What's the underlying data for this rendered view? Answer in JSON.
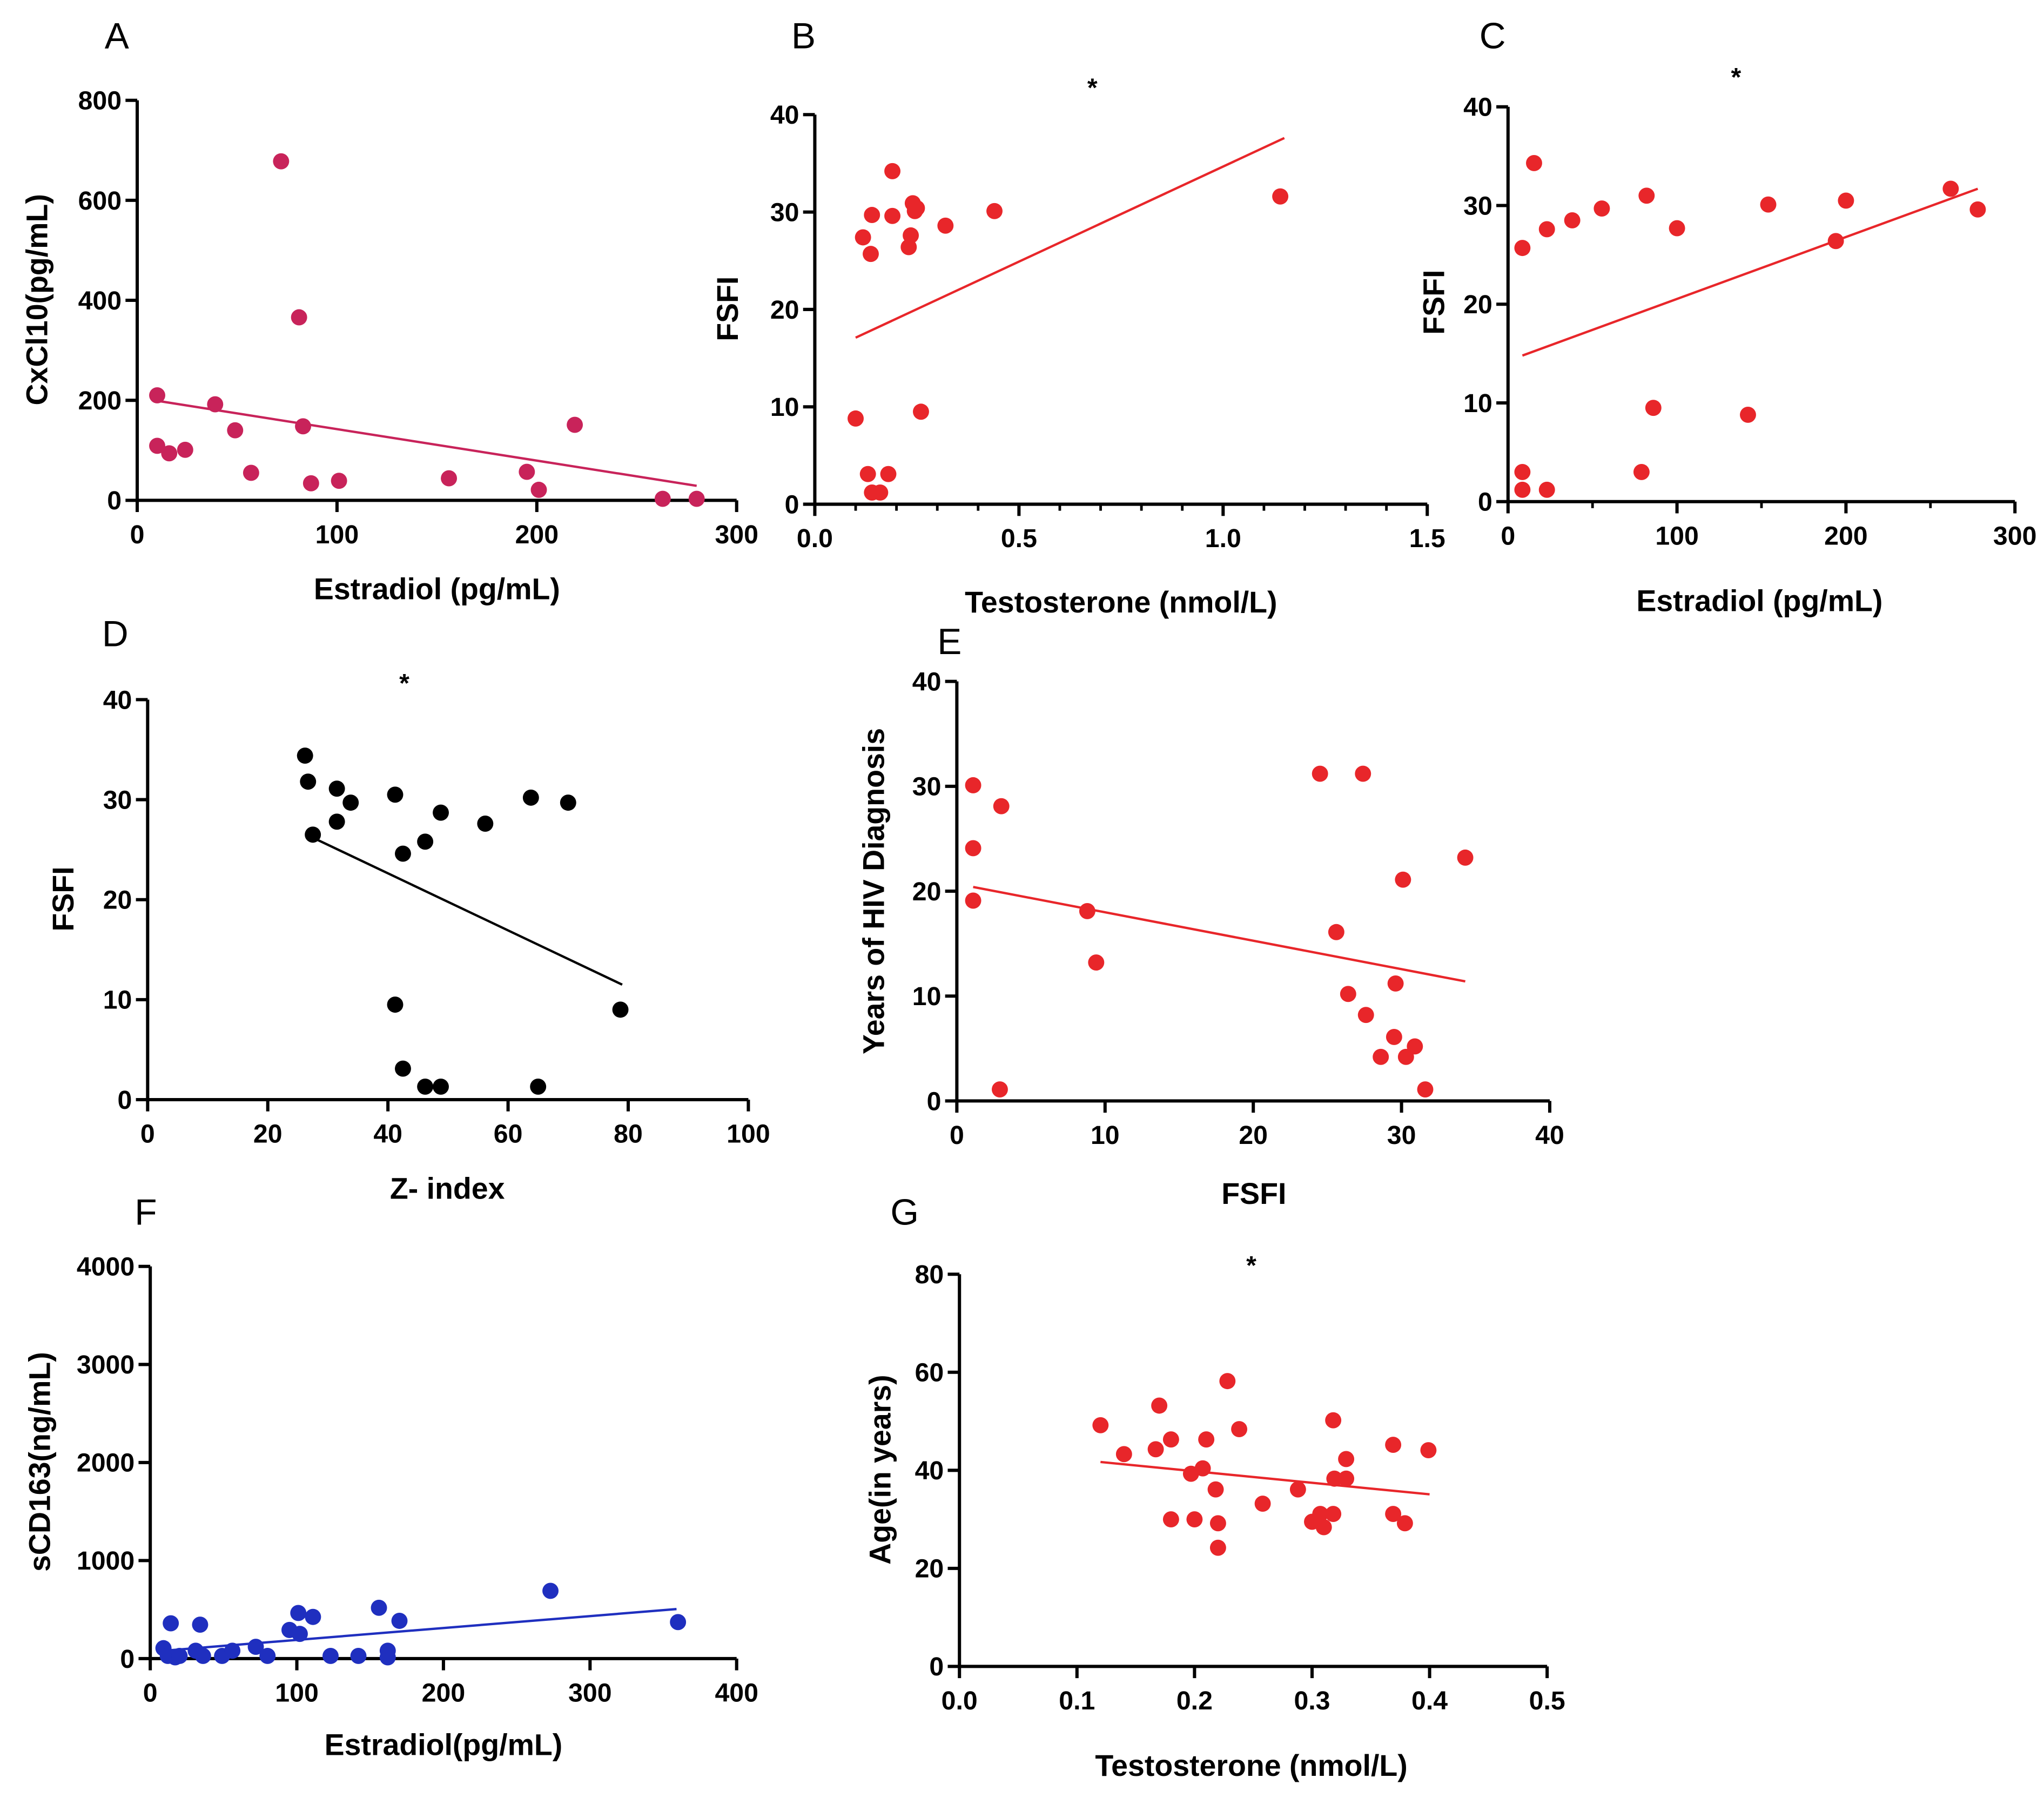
{
  "chart_data": [
    {
      "panel": "A",
      "type": "scatter",
      "color": "#c8235a",
      "xlabel": "Estradiol (pg/mL)",
      "ylabel": "CxCl10(pg/mL)",
      "xlim": [
        0,
        300
      ],
      "ylim": [
        0,
        800
      ],
      "xticks": [
        0,
        100,
        200,
        300
      ],
      "yticks": [
        0,
        200,
        400,
        600,
        800
      ],
      "annotation": "",
      "points": [
        [
          10,
          210
        ],
        [
          10,
          109
        ],
        [
          16,
          94
        ],
        [
          24,
          101
        ],
        [
          39,
          192
        ],
        [
          49,
          140
        ],
        [
          57,
          55
        ],
        [
          72,
          678
        ],
        [
          81,
          366
        ],
        [
          83,
          148
        ],
        [
          87,
          34
        ],
        [
          101,
          39
        ],
        [
          156,
          44
        ],
        [
          195,
          57
        ],
        [
          201,
          21
        ],
        [
          219,
          151
        ],
        [
          263,
          3
        ],
        [
          280,
          3
        ]
      ],
      "fit": [
        [
          8.5,
          200
        ],
        [
          280,
          29
        ]
      ]
    },
    {
      "panel": "B",
      "type": "scatter",
      "color": "#e8262a",
      "xlabel": "Testosterone (nmol/L)",
      "ylabel": "FSFI",
      "xlim": [
        0,
        1.5
      ],
      "ylim": [
        0,
        40
      ],
      "xticks": [
        0.0,
        0.5,
        1.0,
        1.5
      ],
      "xtick_labels": [
        "0.0",
        "0.5",
        "1.0",
        "1.5"
      ],
      "yticks": [
        0,
        10,
        20,
        30,
        40
      ],
      "annotation": "*",
      "points": [
        [
          0.118,
          27.4
        ],
        [
          0.14,
          29.7
        ],
        [
          0.137,
          25.7
        ],
        [
          0.19,
          34.2
        ],
        [
          0.19,
          29.6
        ],
        [
          0.24,
          30.9
        ],
        [
          0.245,
          30.1
        ],
        [
          0.23,
          26.4
        ],
        [
          0.235,
          27.6
        ],
        [
          0.25,
          30.4
        ],
        [
          0.32,
          28.6
        ],
        [
          0.44,
          30.1
        ],
        [
          0.1,
          8.8
        ],
        [
          0.26,
          9.5
        ],
        [
          0.13,
          3.1
        ],
        [
          0.18,
          3.1
        ],
        [
          0.14,
          1.2
        ],
        [
          0.16,
          1.2
        ],
        [
          1.14,
          31.6
        ]
      ],
      "fit": [
        [
          0.1,
          17.1
        ],
        [
          1.15,
          37.6
        ]
      ]
    },
    {
      "panel": "C",
      "type": "scatter",
      "color": "#e8262a",
      "xlabel": "Estradiol (pg/mL)",
      "ylabel": "FSFI",
      "xlim": [
        0,
        300
      ],
      "ylim": [
        0,
        40
      ],
      "xticks": [
        0,
        100,
        200,
        300
      ],
      "yticks": [
        0,
        10,
        20,
        30,
        40
      ],
      "annotation": "*",
      "points": [
        [
          8.5,
          25.7
        ],
        [
          15.4,
          34.3
        ],
        [
          23,
          27.6
        ],
        [
          38,
          28.5
        ],
        [
          55.5,
          29.7
        ],
        [
          82,
          31
        ],
        [
          100,
          27.7
        ],
        [
          154,
          30.1
        ],
        [
          194,
          26.4
        ],
        [
          200,
          30.5
        ],
        [
          262,
          31.7
        ],
        [
          278,
          29.6
        ],
        [
          8.5,
          3
        ],
        [
          8.5,
          1.2
        ],
        [
          23,
          1.2
        ],
        [
          79,
          3
        ],
        [
          86,
          9.5
        ],
        [
          142,
          8.8
        ]
      ],
      "fit": [
        [
          8.5,
          14.8
        ],
        [
          278,
          31.7
        ]
      ]
    },
    {
      "panel": "D",
      "type": "scatter",
      "color": "#000000",
      "xlabel": "Z- index",
      "ylabel": "FSFI",
      "xlim": [
        0,
        100
      ],
      "ylim": [
        0,
        40
      ],
      "xticks": [
        0,
        20,
        40,
        60,
        80,
        100
      ],
      "yticks": [
        0,
        10,
        20,
        30,
        40
      ],
      "annotation": "*",
      "points": [
        [
          26.2,
          34.4
        ],
        [
          26.7,
          31.8
        ],
        [
          31.5,
          31.1
        ],
        [
          33.8,
          29.7
        ],
        [
          31.5,
          27.8
        ],
        [
          27.5,
          26.5
        ],
        [
          41.2,
          30.5
        ],
        [
          48.8,
          28.7
        ],
        [
          42.5,
          24.6
        ],
        [
          46.2,
          25.8
        ],
        [
          56.2,
          27.6
        ],
        [
          63.8,
          30.2
        ],
        [
          70,
          29.7
        ],
        [
          41.2,
          9.5
        ],
        [
          78.7,
          9
        ],
        [
          42.5,
          3.1
        ],
        [
          46.2,
          1.3
        ],
        [
          48.8,
          1.3
        ],
        [
          65,
          1.3
        ]
      ],
      "fit": [
        [
          27.5,
          26.2
        ],
        [
          79,
          11.5
        ]
      ]
    },
    {
      "panel": "E",
      "type": "scatter",
      "color": "#e8262a",
      "xlabel": "FSFI",
      "ylabel": "Years of HIV Diagnosis",
      "xlim": [
        0,
        40
      ],
      "ylim": [
        0,
        40
      ],
      "xticks": [
        0,
        10,
        20,
        30,
        40
      ],
      "yticks": [
        0,
        10,
        20,
        30,
        40
      ],
      "annotation": "",
      "points": [
        [
          1.1,
          30.1
        ],
        [
          1.1,
          24.1
        ],
        [
          1.1,
          19.1
        ],
        [
          3,
          28.1
        ],
        [
          2.9,
          1.1
        ],
        [
          8.8,
          18.1
        ],
        [
          9.4,
          13.2
        ],
        [
          24.5,
          31.2
        ],
        [
          27.4,
          31.2
        ],
        [
          25.6,
          16.1
        ],
        [
          26.4,
          10.2
        ],
        [
          27.6,
          8.2
        ],
        [
          28.6,
          4.2
        ],
        [
          29.6,
          11.2
        ],
        [
          29.5,
          6.1
        ],
        [
          30.1,
          21.1
        ],
        [
          30.3,
          4.2
        ],
        [
          30.9,
          5.2
        ],
        [
          31.6,
          1.1
        ],
        [
          34.3,
          23.2
        ]
      ],
      "fit": [
        [
          1.1,
          20.4
        ],
        [
          34.3,
          11.4
        ]
      ]
    },
    {
      "panel": "F",
      "type": "scatter",
      "color": "#1f2fbf",
      "xlabel": "Estradiol(pg/mL)",
      "ylabel": "sCD163(ng/mL)",
      "xlim": [
        0,
        400
      ],
      "ylim": [
        0,
        4000
      ],
      "xticks": [
        0,
        100,
        200,
        300,
        400
      ],
      "yticks": [
        0,
        1000,
        2000,
        3000,
        4000
      ],
      "annotation": "",
      "points": [
        [
          9,
          106
        ],
        [
          14,
          360
        ],
        [
          12,
          27
        ],
        [
          17,
          13
        ],
        [
          20,
          27
        ],
        [
          31,
          80
        ],
        [
          34,
          346
        ],
        [
          36,
          27
        ],
        [
          49,
          27
        ],
        [
          56,
          80
        ],
        [
          72,
          120
        ],
        [
          80,
          27
        ],
        [
          95,
          292
        ],
        [
          101,
          465
        ],
        [
          102,
          252
        ],
        [
          111,
          425
        ],
        [
          123,
          27
        ],
        [
          142,
          27
        ],
        [
          156,
          518
        ],
        [
          162,
          80
        ],
        [
          162,
          13
        ],
        [
          170,
          385
        ],
        [
          273,
          691
        ],
        [
          360,
          372
        ]
      ],
      "fit": [
        [
          9,
          80
        ],
        [
          359,
          505
        ]
      ]
    },
    {
      "panel": "G",
      "type": "scatter",
      "color": "#e8262a",
      "xlabel": "Testosterone (nmol/L)",
      "ylabel": "Age(in years)",
      "xlim": [
        0,
        0.5
      ],
      "ylim": [
        0,
        80
      ],
      "xticks": [
        0.0,
        0.1,
        0.2,
        0.3,
        0.4,
        0.5
      ],
      "xtick_labels": [
        "0.0",
        "0.1",
        "0.2",
        "0.3",
        "0.4",
        "0.5"
      ],
      "yticks": [
        0,
        20,
        40,
        60,
        80
      ],
      "annotation": "*",
      "points": [
        [
          0.12,
          49.2
        ],
        [
          0.14,
          43.3
        ],
        [
          0.17,
          53.2
        ],
        [
          0.167,
          44.3
        ],
        [
          0.18,
          46.3
        ],
        [
          0.18,
          30
        ],
        [
          0.197,
          39.3
        ],
        [
          0.2,
          30
        ],
        [
          0.207,
          40.4
        ],
        [
          0.21,
          46.3
        ],
        [
          0.218,
          36.1
        ],
        [
          0.22,
          29.2
        ],
        [
          0.22,
          24.2
        ],
        [
          0.228,
          58.2
        ],
        [
          0.238,
          48.4
        ],
        [
          0.258,
          33.2
        ],
        [
          0.288,
          36.1
        ],
        [
          0.3,
          29.5
        ],
        [
          0.307,
          31.1
        ],
        [
          0.31,
          28.4
        ],
        [
          0.318,
          50.2
        ],
        [
          0.318,
          31.1
        ],
        [
          0.319,
          38.3
        ],
        [
          0.329,
          38.3
        ],
        [
          0.329,
          42.3
        ],
        [
          0.369,
          45.2
        ],
        [
          0.369,
          31.1
        ],
        [
          0.379,
          29.2
        ],
        [
          0.399,
          44.1
        ]
      ],
      "fit": [
        [
          0.12,
          41.7
        ],
        [
          0.4,
          35.1
        ]
      ]
    }
  ]
}
